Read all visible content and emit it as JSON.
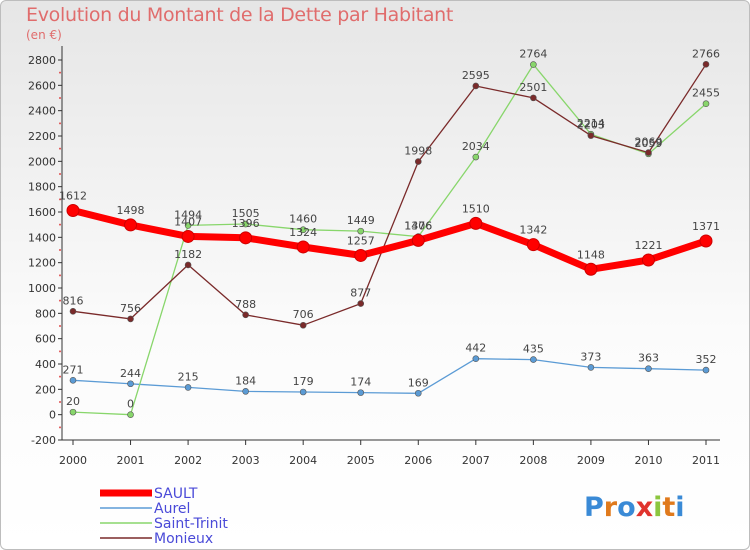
{
  "title": "Evolution du Montant de la Dette par Habitant",
  "subtitle": "(en €)",
  "logo": "Proxiti",
  "chart_data": {
    "type": "line",
    "title": "Evolution du Montant de la Dette par Habitant",
    "ylabel": "(en €)",
    "x": [
      "2000",
      "2001",
      "2002",
      "2003",
      "2004",
      "2005",
      "2006",
      "2007",
      "2008",
      "2009",
      "2010",
      "2011"
    ],
    "yticks": [
      -200,
      0,
      200,
      400,
      600,
      800,
      1000,
      1200,
      1400,
      1600,
      1800,
      2000,
      2200,
      2400,
      2600,
      2800
    ],
    "ylim": [
      -200,
      2800
    ],
    "grid": false,
    "legend": "bottom-left",
    "series": [
      {
        "name": "SAULT",
        "color": "#ff0000",
        "width": 7,
        "values": [
          1612,
          1498,
          1407,
          1396,
          1324,
          1257,
          1376,
          1510,
          1342,
          1148,
          1221,
          1371
        ]
      },
      {
        "name": "Aurel",
        "color": "#5b9bd5",
        "width": 1.3,
        "values": [
          271,
          244,
          215,
          184,
          179,
          174,
          169,
          442,
          435,
          373,
          363,
          352
        ]
      },
      {
        "name": "Saint-Trinit",
        "color": "#88d66b",
        "width": 1.3,
        "values": [
          20,
          0,
          1494,
          1505,
          1460,
          1449,
          1406,
          2034,
          2764,
          2214,
          2059,
          2455
        ]
      },
      {
        "name": "Monieux",
        "color": "#7a2a2a",
        "width": 1.3,
        "values": [
          816,
          756,
          1182,
          788,
          706,
          877,
          1998,
          2595,
          2501,
          2203,
          2069,
          2766
        ]
      }
    ]
  }
}
